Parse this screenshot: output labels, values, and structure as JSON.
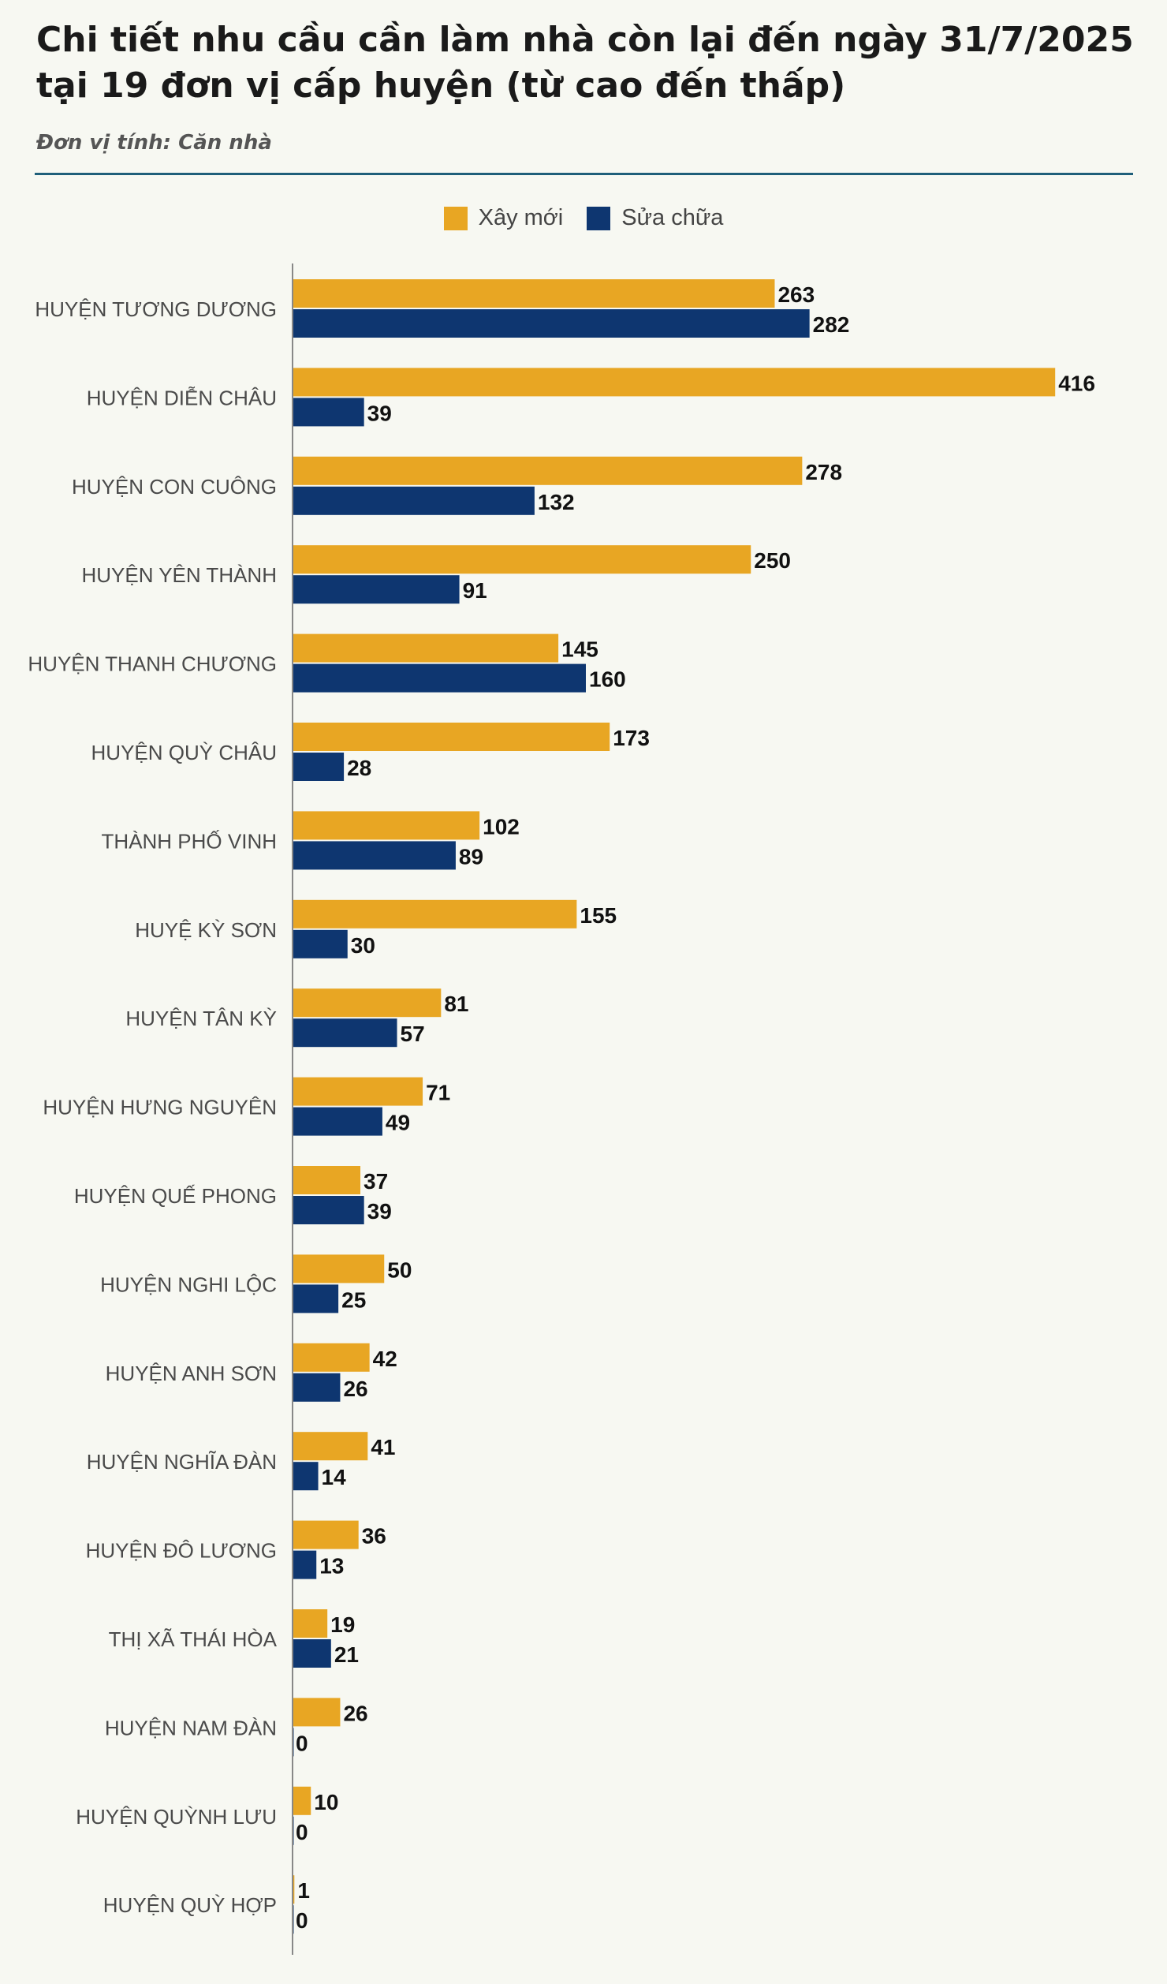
{
  "title": "Chi tiết nhu cầu cần làm nhà còn lại đến ngày 31/7/2025 tại 19 đơn vị cấp huyện (từ cao đến thấp)",
  "subtitle": "Đơn vị tính: Căn nhà",
  "colors": {
    "new": "#e8a623",
    "repair": "#0e3670",
    "background": "#f7f8f2",
    "rule": "#1f5f7a"
  },
  "chart_data": {
    "type": "bar",
    "orientation": "horizontal",
    "legend_position": "top-center",
    "grid": false,
    "categories": [
      "HUYỆN TƯƠNG DƯƠNG",
      "HUYỆN DIỄN CHÂU",
      "HUYỆN CON CUÔNG",
      "HUYỆN YÊN THÀNH",
      "HUYỆN THANH CHƯƠNG",
      "HUYỆN QUỲ CHÂU",
      "THÀNH PHỐ VINH",
      "HUYỆ KỲ SƠN",
      "HUYỆN TÂN KỲ",
      "HUYỆN HƯNG NGUYÊN",
      "HUYỆN QUẾ PHONG",
      "HUYỆN NGHI LỘC",
      "HUYỆN ANH SƠN",
      "HUYỆN NGHĨA ĐÀN",
      "HUYỆN ĐÔ LƯƠNG",
      "THỊ XÃ THÁI HÒA",
      "HUYỆN NAM ĐÀN",
      "HUYỆN QUỲNH LƯU",
      "HUYỆN QUỲ HỢP"
    ],
    "series": [
      {
        "name": "Xây mới",
        "color": "#e8a623",
        "values": [
          263,
          416,
          278,
          250,
          145,
          173,
          102,
          155,
          81,
          71,
          37,
          50,
          42,
          41,
          36,
          19,
          26,
          10,
          1
        ]
      },
      {
        "name": "Sửa chữa",
        "color": "#0e3670",
        "values": [
          282,
          39,
          132,
          91,
          160,
          28,
          89,
          30,
          57,
          49,
          39,
          25,
          26,
          14,
          13,
          21,
          0,
          0,
          0
        ]
      }
    ],
    "xlim": [
      0,
      416
    ]
  }
}
